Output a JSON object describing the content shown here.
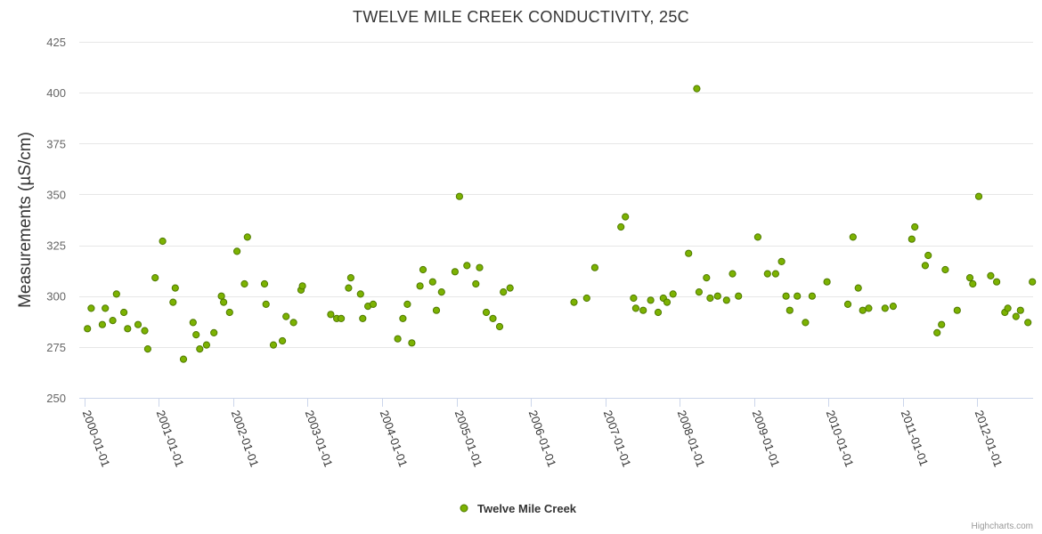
{
  "chart_data": {
    "type": "scatter",
    "title": "TWELVE MILE CREEK CONDUCTIVITY, 25C",
    "ylabel": "Measurements (µS/cm)",
    "xlabel": "",
    "ylim": [
      250,
      425
    ],
    "yticks": [
      250,
      275,
      300,
      325,
      350,
      375,
      400,
      425
    ],
    "xlim": [
      1999.93,
      2012.75
    ],
    "xticks": [
      {
        "value": 2000,
        "label": "2000-01-01"
      },
      {
        "value": 2001,
        "label": "2001-01-01"
      },
      {
        "value": 2002,
        "label": "2002-01-01"
      },
      {
        "value": 2003,
        "label": "2003-01-01"
      },
      {
        "value": 2004,
        "label": "2004-01-01"
      },
      {
        "value": 2005,
        "label": "2005-01-01"
      },
      {
        "value": 2006,
        "label": "2006-01-01"
      },
      {
        "value": 2007,
        "label": "2007-01-01"
      },
      {
        "value": 2008,
        "label": "2008-01-01"
      },
      {
        "value": 2009,
        "label": "2009-01-01"
      },
      {
        "value": 2010,
        "label": "2010-01-01"
      },
      {
        "value": 2011,
        "label": "2011-01-01"
      },
      {
        "value": 2012,
        "label": "2012-01-01"
      }
    ],
    "grid": true,
    "legend_position": "bottom-center",
    "series": [
      {
        "name": "Twelve Mile Creek",
        "color": "#7cb202",
        "edge_color": "#4f7a00",
        "points": [
          [
            2000.04,
            284
          ],
          [
            2000.09,
            294
          ],
          [
            2000.24,
            286
          ],
          [
            2000.28,
            294
          ],
          [
            2000.38,
            288
          ],
          [
            2000.43,
            301
          ],
          [
            2000.53,
            292
          ],
          [
            2000.58,
            284
          ],
          [
            2000.72,
            286
          ],
          [
            2000.81,
            283
          ],
          [
            2000.85,
            274
          ],
          [
            2000.95,
            309
          ],
          [
            2001.05,
            327
          ],
          [
            2001.19,
            297
          ],
          [
            2001.22,
            304
          ],
          [
            2001.33,
            269
          ],
          [
            2001.46,
            287
          ],
          [
            2001.5,
            281
          ],
          [
            2001.55,
            274
          ],
          [
            2001.64,
            276
          ],
          [
            2001.74,
            282
          ],
          [
            2001.84,
            300
          ],
          [
            2001.87,
            297
          ],
          [
            2001.95,
            292
          ],
          [
            2002.05,
            322
          ],
          [
            2002.15,
            306
          ],
          [
            2002.19,
            329
          ],
          [
            2002.42,
            306
          ],
          [
            2002.44,
            296
          ],
          [
            2002.54,
            276
          ],
          [
            2002.66,
            278
          ],
          [
            2002.71,
            290
          ],
          [
            2002.81,
            287
          ],
          [
            2002.91,
            303
          ],
          [
            2002.93,
            305
          ],
          [
            2003.31,
            291
          ],
          [
            2003.39,
            289
          ],
          [
            2003.45,
            289
          ],
          [
            2003.55,
            304
          ],
          [
            2003.58,
            309
          ],
          [
            2003.71,
            301
          ],
          [
            2003.74,
            289
          ],
          [
            2003.81,
            295
          ],
          [
            2003.88,
            296
          ],
          [
            2004.21,
            279
          ],
          [
            2004.28,
            289
          ],
          [
            2004.34,
            296
          ],
          [
            2004.4,
            277
          ],
          [
            2004.51,
            305
          ],
          [
            2004.55,
            313
          ],
          [
            2004.68,
            307
          ],
          [
            2004.73,
            293
          ],
          [
            2004.8,
            302
          ],
          [
            2004.98,
            312
          ],
          [
            2005.04,
            349
          ],
          [
            2005.14,
            315
          ],
          [
            2005.26,
            306
          ],
          [
            2005.31,
            314
          ],
          [
            2005.4,
            292
          ],
          [
            2005.49,
            289
          ],
          [
            2005.58,
            285
          ],
          [
            2005.63,
            302
          ],
          [
            2005.72,
            304
          ],
          [
            2006.58,
            297
          ],
          [
            2006.75,
            299
          ],
          [
            2006.86,
            314
          ],
          [
            2007.21,
            334
          ],
          [
            2007.27,
            339
          ],
          [
            2007.38,
            299
          ],
          [
            2007.41,
            294
          ],
          [
            2007.51,
            293
          ],
          [
            2007.61,
            298
          ],
          [
            2007.71,
            292
          ],
          [
            2007.78,
            299
          ],
          [
            2007.83,
            297
          ],
          [
            2007.91,
            301
          ],
          [
            2008.12,
            321
          ],
          [
            2008.23,
            402
          ],
          [
            2008.26,
            302
          ],
          [
            2008.36,
            309
          ],
          [
            2008.41,
            299
          ],
          [
            2008.51,
            300
          ],
          [
            2008.63,
            298
          ],
          [
            2008.71,
            311
          ],
          [
            2008.79,
            300
          ],
          [
            2009.05,
            329
          ],
          [
            2009.18,
            311
          ],
          [
            2009.29,
            311
          ],
          [
            2009.37,
            317
          ],
          [
            2009.43,
            300
          ],
          [
            2009.48,
            293
          ],
          [
            2009.58,
            300
          ],
          [
            2009.69,
            287
          ],
          [
            2009.78,
            300
          ],
          [
            2009.98,
            307
          ],
          [
            2010.26,
            296
          ],
          [
            2010.33,
            329
          ],
          [
            2010.4,
            304
          ],
          [
            2010.46,
            293
          ],
          [
            2010.54,
            294
          ],
          [
            2010.76,
            294
          ],
          [
            2010.87,
            295
          ],
          [
            2011.12,
            328
          ],
          [
            2011.16,
            334
          ],
          [
            2011.3,
            315
          ],
          [
            2011.34,
            320
          ],
          [
            2011.46,
            282
          ],
          [
            2011.52,
            286
          ],
          [
            2011.57,
            313
          ],
          [
            2011.73,
            293
          ],
          [
            2011.9,
            309
          ],
          [
            2011.94,
            306
          ],
          [
            2012.02,
            349
          ],
          [
            2012.18,
            310
          ],
          [
            2012.26,
            307
          ],
          [
            2012.37,
            292
          ],
          [
            2012.41,
            294
          ],
          [
            2012.52,
            290
          ],
          [
            2012.58,
            293
          ],
          [
            2012.68,
            287
          ],
          [
            2012.74,
            307
          ]
        ]
      }
    ]
  },
  "legend": {
    "items": [
      {
        "label": "Twelve Mile Creek",
        "color": "#7cb202"
      }
    ]
  },
  "credits": "Highcharts.com"
}
